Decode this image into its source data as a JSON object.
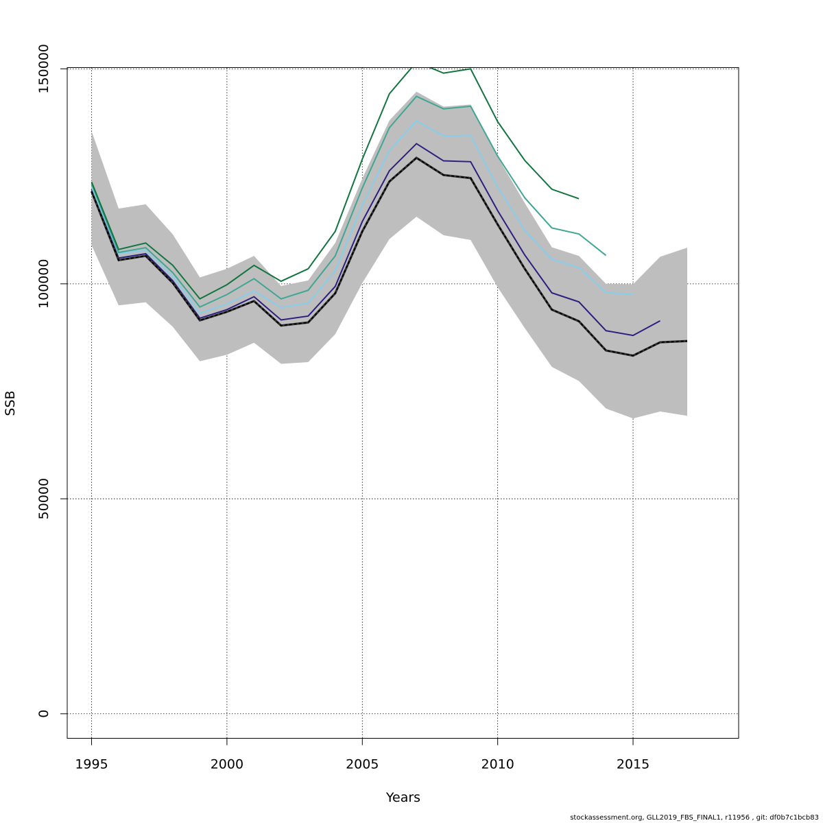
{
  "chart_data": {
    "type": "line",
    "xlabel": "Years",
    "ylabel": "SSB",
    "xlim": [
      1994.1,
      2018.9
    ],
    "ylim": [
      -5700,
      150300
    ],
    "x_ticks": [
      1995,
      2000,
      2005,
      2010,
      2015
    ],
    "y_ticks": [
      0,
      50000,
      100000,
      150000
    ],
    "grid": true,
    "band": {
      "x": [
        1995,
        1996,
        1997,
        1998,
        1999,
        2000,
        2001,
        2002,
        2003,
        2004,
        2005,
        2006,
        2007,
        2008,
        2009,
        2010,
        2011,
        2012,
        2013,
        2014,
        2015,
        2016,
        2017
      ],
      "upper": [
        135500,
        117500,
        118500,
        111500,
        101500,
        103500,
        106500,
        99500,
        100800,
        109500,
        124500,
        138000,
        144700,
        141200,
        141700,
        129500,
        118800,
        108500,
        106500,
        100000,
        99900,
        106300,
        108400
      ],
      "lower": [
        109000,
        95000,
        95700,
        90000,
        82000,
        83500,
        86300,
        81400,
        81800,
        88300,
        100200,
        110400,
        115600,
        111300,
        110200,
        99200,
        89700,
        80700,
        77400,
        71000,
        68700,
        70300,
        69300
      ],
      "color": "#bebebe"
    },
    "series": [
      {
        "x": [
          1995,
          1996,
          1997,
          1998,
          1999,
          2000,
          2001,
          2002,
          2003,
          2004,
          2005,
          2006,
          2007,
          2008,
          2009,
          2010,
          2011,
          2012,
          2013,
          2014,
          2015,
          2016,
          2017
        ],
        "values": [
          121500,
          105500,
          106500,
          100200,
          91500,
          93500,
          96000,
          90300,
          91000,
          97800,
          112200,
          123800,
          129300,
          125300,
          124600,
          113800,
          103500,
          94000,
          91300,
          84500,
          83300,
          86400,
          86700
        ],
        "color": "#000000",
        "dashed": true
      },
      {
        "x": [
          1995,
          1996,
          1997,
          1998,
          1999,
          2000,
          2001,
          2002,
          2003,
          2004,
          2005,
          2006,
          2007,
          2008,
          2009,
          2010,
          2011,
          2012,
          2013,
          2014,
          2015,
          2016
        ],
        "values": [
          122000,
          106000,
          107000,
          100700,
          92000,
          94000,
          97000,
          91600,
          92500,
          99400,
          114500,
          126300,
          132600,
          128600,
          128400,
          117000,
          106700,
          97900,
          95800,
          89100,
          88000,
          91400
        ],
        "color": "#2b1f7f",
        "dashed": false
      },
      {
        "x": [
          1995,
          1996,
          1997,
          1998,
          1999,
          2000,
          2001,
          2002,
          2003,
          2004,
          2005,
          2006,
          2007,
          2008,
          2009,
          2010,
          2011,
          2012,
          2013,
          2014,
          2015
        ],
        "values": [
          122500,
          107000,
          107800,
          101700,
          93200,
          95300,
          98300,
          94500,
          95500,
          103000,
          118300,
          131000,
          137900,
          134400,
          134500,
          122500,
          112500,
          105700,
          103800,
          98000,
          97500
        ],
        "color": "#87ceeb",
        "dashed": false
      },
      {
        "x": [
          1995,
          1996,
          1997,
          1998,
          1999,
          2000,
          2001,
          2002,
          2003,
          2004,
          2005,
          2006,
          2007,
          2008,
          2009,
          2010,
          2011,
          2012,
          2013,
          2014
        ],
        "values": [
          123300,
          107300,
          108400,
          102600,
          94600,
          97500,
          101200,
          96500,
          98500,
          106500,
          122300,
          136300,
          143600,
          140700,
          141300,
          129700,
          120000,
          113000,
          111600,
          106600
        ],
        "color": "#3ea693",
        "dashed": false
      },
      {
        "x": [
          1995,
          1996,
          1997,
          1998,
          1999,
          2000,
          2001,
          2002,
          2003,
          2004,
          2005,
          2006,
          2007,
          2008,
          2009,
          2010,
          2011,
          2012,
          2013
        ],
        "values": [
          123700,
          108000,
          109500,
          104300,
          96500,
          99800,
          104300,
          100600,
          103500,
          112200,
          129000,
          144200,
          151600,
          149000,
          150000,
          137700,
          128700,
          122000,
          119800
        ],
        "color": "#12743e",
        "dashed": false
      }
    ]
  },
  "footer": "stockassessment.org, GLL2019_FBS_FINAL1, r11956 , git: df0b7c1bcb83"
}
